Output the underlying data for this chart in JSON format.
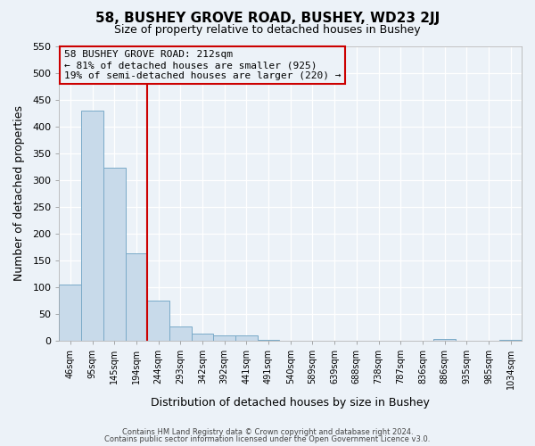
{
  "title": "58, BUSHEY GROVE ROAD, BUSHEY, WD23 2JJ",
  "subtitle": "Size of property relative to detached houses in Bushey",
  "xlabel": "Distribution of detached houses by size in Bushey",
  "ylabel": "Number of detached properties",
  "bar_values": [
    105,
    430,
    322,
    163,
    75,
    26,
    13,
    10,
    10,
    1,
    0,
    0,
    0,
    0,
    0,
    0,
    0,
    3,
    0,
    0,
    1
  ],
  "bar_labels": [
    "46sqm",
    "95sqm",
    "145sqm",
    "194sqm",
    "244sqm",
    "293sqm",
    "342sqm",
    "392sqm",
    "441sqm",
    "491sqm",
    "540sqm",
    "589sqm",
    "639sqm",
    "688sqm",
    "738sqm",
    "787sqm",
    "836sqm",
    "886sqm",
    "935sqm",
    "985sqm",
    "1034sqm"
  ],
  "bar_color": "#c8daea",
  "bar_edge_color": "#7aaac8",
  "ylim": [
    0,
    550
  ],
  "yticks": [
    0,
    50,
    100,
    150,
    200,
    250,
    300,
    350,
    400,
    450,
    500,
    550
  ],
  "property_line_x": 3.5,
  "property_line_color": "#cc0000",
  "annotation_title": "58 BUSHEY GROVE ROAD: 212sqm",
  "annotation_line1": "← 81% of detached houses are smaller (925)",
  "annotation_line2": "19% of semi-detached houses are larger (220) →",
  "annotation_box_color": "#cc0000",
  "footer_line1": "Contains HM Land Registry data © Crown copyright and database right 2024.",
  "footer_line2": "Contains public sector information licensed under the Open Government Licence v3.0.",
  "n_bins": 21,
  "background_color": "#ecf2f8",
  "grid_color": "#ffffff",
  "grid_line_color": "#c8d0d8"
}
